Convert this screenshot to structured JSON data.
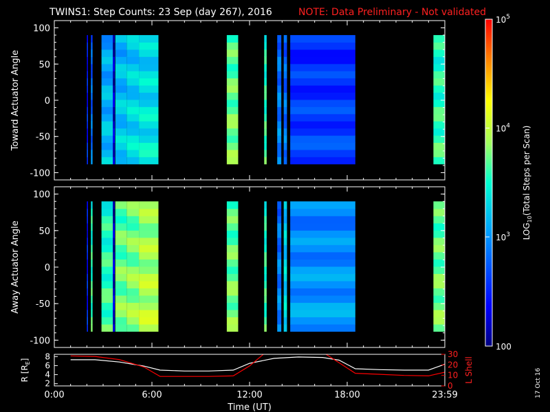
{
  "title": {
    "main": "TWINS1: Step Counts: 23 Sep (day 267), 2016",
    "note": "NOTE: Data Preliminary - Not validated",
    "note_color": "#ff2020"
  },
  "stamp": "17 Oct 16",
  "chart_data": [
    {
      "type": "heatmap",
      "name": "toward-panel",
      "ylabel": "Toward Actuator Angle",
      "ylim": [
        -110,
        110
      ],
      "yticks": [
        100,
        50,
        0,
        -50,
        -100
      ],
      "xlim_hours": [
        0,
        24
      ],
      "angle_range": [
        -88,
        90
      ],
      "blocks": [
        {
          "start": 2.0,
          "end": 2.07,
          "level": 0.18
        },
        {
          "start": 2.25,
          "end": 2.35,
          "level": 0.3
        },
        {
          "start": 2.9,
          "end": 3.6,
          "level": 0.4
        },
        {
          "start": 3.6,
          "end": 3.72,
          "level": 0.1
        },
        {
          "start": 3.75,
          "end": 4.45,
          "level": 0.42
        },
        {
          "start": 4.45,
          "end": 5.2,
          "level": 0.45
        },
        {
          "start": 5.2,
          "end": 6.4,
          "level": 0.47
        },
        {
          "start": 10.6,
          "end": 11.3,
          "level": 0.6
        },
        {
          "start": 12.9,
          "end": 13.05,
          "level": 0.55
        },
        {
          "start": 13.7,
          "end": 13.95,
          "level": 0.32
        },
        {
          "start": 14.1,
          "end": 14.3,
          "level": 0.3
        },
        {
          "start": 14.5,
          "end": 18.5,
          "level": 0.22
        },
        {
          "start": 23.3,
          "end": 24.0,
          "level": 0.55
        }
      ]
    },
    {
      "type": "heatmap",
      "name": "away-panel",
      "ylabel": "Away Actuator Angle",
      "ylim": [
        -110,
        110
      ],
      "yticks": [
        100,
        50,
        0,
        -50,
        -100
      ],
      "xlim_hours": [
        0,
        24
      ],
      "angle_range": [
        -88,
        90
      ],
      "blocks": [
        {
          "start": 2.0,
          "end": 2.07,
          "level": 0.18
        },
        {
          "start": 2.25,
          "end": 2.35,
          "level": 0.55
        },
        {
          "start": 2.9,
          "end": 3.6,
          "level": 0.55
        },
        {
          "start": 3.6,
          "end": 3.72,
          "level": 0.1
        },
        {
          "start": 3.75,
          "end": 4.45,
          "level": 0.6
        },
        {
          "start": 4.45,
          "end": 5.2,
          "level": 0.62
        },
        {
          "start": 5.2,
          "end": 6.4,
          "level": 0.66
        },
        {
          "start": 10.6,
          "end": 11.3,
          "level": 0.6
        },
        {
          "start": 12.9,
          "end": 13.05,
          "level": 0.55
        },
        {
          "start": 13.7,
          "end": 13.95,
          "level": 0.32
        },
        {
          "start": 14.1,
          "end": 14.3,
          "level": 0.45
        },
        {
          "start": 14.5,
          "end": 18.5,
          "level": 0.35
        },
        {
          "start": 23.3,
          "end": 24.0,
          "level": 0.6
        }
      ]
    },
    {
      "type": "line",
      "name": "orbit-panel",
      "ylabel_left": "R [R",
      "ylabel_left_sub": "E",
      "ylabel_left_end": "]",
      "ylabel_right": "L Shell",
      "ylim_left": [
        1.5,
        8.5
      ],
      "ylim_right": [
        0,
        30
      ],
      "yticks_left": [
        8,
        6,
        4,
        2
      ],
      "yticks_right": [
        30,
        20,
        10,
        0
      ],
      "xlabel": "Time (UT)",
      "xtick_labels": [
        "0:00",
        "6:00",
        "12:00",
        "18:00",
        "23:59"
      ],
      "xtick_hours": [
        0,
        6,
        12,
        18,
        24
      ],
      "series": [
        {
          "name": "R",
          "color": "#ffffff",
          "x": [
            1.0,
            2.5,
            4.0,
            5.5,
            6.5,
            8.0,
            9.5,
            11.0,
            12.0,
            13.5,
            15.0,
            16.5,
            17.5,
            18.5,
            20.0,
            21.5,
            23.0,
            23.99
          ],
          "y": [
            7.3,
            7.3,
            6.8,
            5.9,
            5.0,
            4.8,
            4.8,
            5.0,
            6.5,
            7.6,
            7.9,
            7.8,
            7.2,
            5.3,
            5.1,
            5.0,
            5.0,
            6.3
          ]
        },
        {
          "name": "L Shell",
          "color": "#ff0000",
          "x": [
            1.0,
            2.5,
            4.0,
            5.5,
            6.5,
            8.0,
            9.5,
            11.0,
            12.0,
            13.0,
            16.5,
            17.5,
            18.5,
            20.0,
            21.5,
            23.0,
            23.99
          ],
          "y": [
            28.5,
            28.0,
            25.0,
            18.0,
            9.0,
            9.0,
            9.0,
            9.5,
            19.0,
            32.0,
            32.0,
            22.0,
            12.0,
            11.0,
            10.0,
            9.5,
            13.0
          ]
        }
      ]
    }
  ],
  "colorbar": {
    "label_prefix": "LOG",
    "label_sub": "10",
    "label_rest": "(Total Steps per Scan)",
    "ticks": [
      {
        "base": "10",
        "exp": "5",
        "frac": 0.0
      },
      {
        "base": "10",
        "exp": "4",
        "frac": 0.333
      },
      {
        "base": "10",
        "exp": "3",
        "frac": 0.666
      },
      {
        "base": "100",
        "exp": "",
        "frac": 1.0
      }
    ]
  }
}
